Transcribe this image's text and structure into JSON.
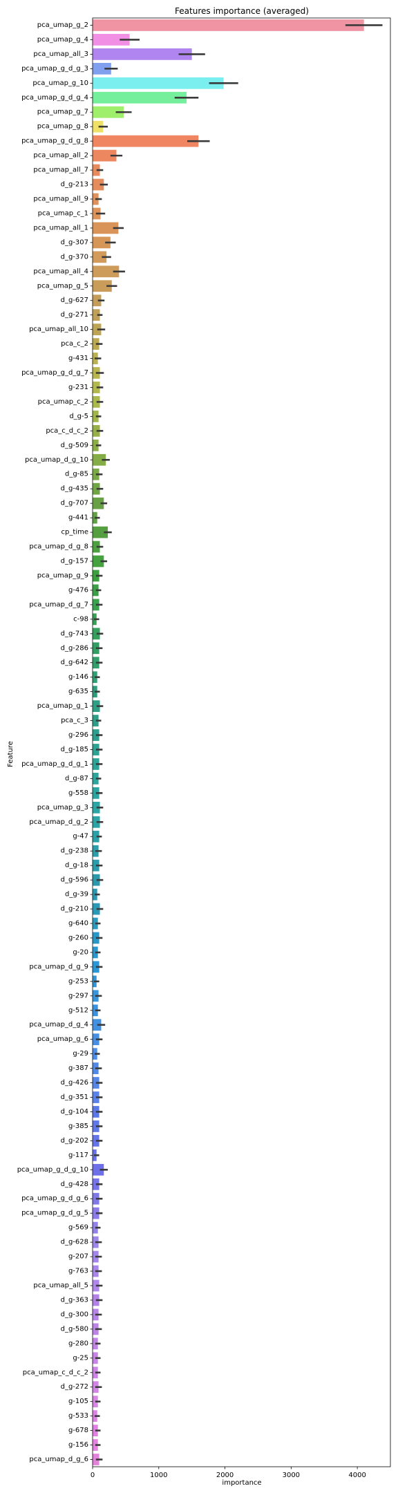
{
  "chart_data": {
    "type": "bar",
    "orientation": "horizontal",
    "title": "Features importance (averaged)",
    "xlabel": "importance",
    "ylabel": "Feature",
    "xlim": [
      0,
      4500
    ],
    "xticks": [
      0,
      1000,
      2000,
      3000,
      4000
    ],
    "grid": false,
    "error_bars": true,
    "palette": "husl",
    "categories": [
      "pca_umap_g_2",
      "pca_umap_g_4",
      "pca_umap_all_3",
      "pca_umap_g_d_g_3",
      "pca_umap_g_10",
      "pca_umap_g_d_g_4",
      "pca_umap_g_7",
      "pca_umap_g_8",
      "pca_umap_g_d_g_8",
      "pca_umap_all_2",
      "pca_umap_all_7",
      "d_g-213",
      "pca_umap_all_9",
      "pca_umap_c_1",
      "pca_umap_all_1",
      "d_g-307",
      "d_g-370",
      "pca_umap_all_4",
      "pca_umap_g_5",
      "d_g-627",
      "d_g-271",
      "pca_umap_all_10",
      "pca_c_2",
      "g-431",
      "pca_umap_g_d_g_7",
      "g-231",
      "pca_umap_c_2",
      "d_g-5",
      "pca_c_d_c_2",
      "d_g-509",
      "pca_umap_d_g_10",
      "d_g-85",
      "d_g-435",
      "d_g-707",
      "g-441",
      "cp_time",
      "pca_umap_d_g_8",
      "d_g-157",
      "pca_umap_g_9",
      "g-476",
      "pca_umap_d_g_7",
      "c-98",
      "d_g-743",
      "d_g-286",
      "d_g-642",
      "g-146",
      "g-635",
      "pca_umap_g_1",
      "pca_c_3",
      "g-296",
      "d_g-185",
      "pca_umap_g_d_g_1",
      "d_g-87",
      "g-558",
      "pca_umap_g_3",
      "pca_umap_d_g_2",
      "g-47",
      "d_g-238",
      "d_g-18",
      "d_g-596",
      "d_g-39",
      "d_g-210",
      "g-640",
      "g-260",
      "g-20",
      "pca_umap_d_g_9",
      "g-253",
      "g-297",
      "g-512",
      "pca_umap_d_g_4",
      "pca_umap_g_6",
      "g-29",
      "g-387",
      "d_g-426",
      "d_g-351",
      "d_g-104",
      "g-385",
      "d_g-202",
      "g-117",
      "pca_umap_g_d_g_10",
      "d_g-428",
      "pca_umap_g_d_g_6",
      "pca_umap_g_d_g_5",
      "g-569",
      "d_g-628",
      "g-207",
      "g-763",
      "pca_umap_all_5",
      "d_g-363",
      "d_g-300",
      "d_g-580",
      "g-280",
      "g-25",
      "pca_umap_c_d_c_2",
      "d_g-272",
      "g-105",
      "g-533",
      "g-678",
      "g-156",
      "pca_umap_d_g_6"
    ],
    "values": [
      4100,
      560,
      1500,
      280,
      1980,
      1420,
      470,
      160,
      1600,
      360,
      110,
      170,
      90,
      120,
      390,
      270,
      210,
      400,
      290,
      130,
      110,
      130,
      100,
      80,
      110,
      110,
      110,
      90,
      110,
      90,
      200,
      100,
      110,
      170,
      70,
      230,
      110,
      170,
      100,
      90,
      100,
      60,
      110,
      100,
      100,
      70,
      70,
      110,
      90,
      100,
      100,
      100,
      90,
      100,
      110,
      110,
      100,
      90,
      100,
      110,
      70,
      110,
      80,
      100,
      80,
      100,
      60,
      90,
      80,
      130,
      100,
      70,
      90,
      100,
      100,
      100,
      100,
      100,
      60,
      170,
      100,
      100,
      100,
      80,
      90,
      90,
      90,
      100,
      100,
      90,
      90,
      80,
      80,
      80,
      90,
      80,
      70,
      80,
      80,
      100
    ],
    "errors": [
      280,
      150,
      200,
      100,
      220,
      180,
      120,
      70,
      170,
      90,
      50,
      60,
      50,
      70,
      80,
      80,
      70,
      90,
      80,
      50,
      40,
      60,
      50,
      50,
      60,
      50,
      50,
      40,
      50,
      40,
      60,
      50,
      50,
      50,
      40,
      60,
      50,
      50,
      50,
      40,
      50,
      40,
      50,
      50,
      50,
      40,
      40,
      50,
      40,
      50,
      50,
      50,
      40,
      50,
      50,
      50,
      40,
      50,
      50,
      50,
      40,
      50,
      40,
      50,
      40,
      50,
      40,
      50,
      40,
      60,
      50,
      40,
      50,
      50,
      50,
      50,
      50,
      50,
      40,
      60,
      50,
      50,
      50,
      40,
      50,
      50,
      50,
      50,
      50,
      50,
      50,
      40,
      40,
      40,
      50,
      40,
      40,
      40,
      40,
      50
    ]
  }
}
